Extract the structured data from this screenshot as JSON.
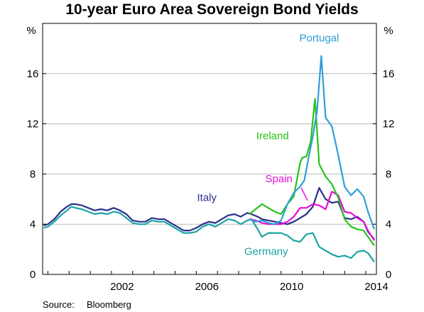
{
  "chart_data": {
    "type": "line",
    "title": "10-year Euro Area Sovereign Bond Yields",
    "ylabel_left": "%",
    "ylabel_right": "%",
    "xlim": [
      1998.75,
      2014.5
    ],
    "ylim": [
      0,
      20
    ],
    "yticks": [
      0,
      4,
      8,
      12,
      16
    ],
    "xticks": [
      "2002",
      "2006",
      "2010",
      "2014"
    ],
    "grid": "horizontal",
    "series": [
      {
        "name": "Germany",
        "color": "#1aa3a3",
        "label_pos": [
          2009.3,
          1.55
        ],
        "x": [
          1998.8,
          1999.0,
          1999.3,
          1999.6,
          1999.9,
          2000.1,
          2000.3,
          2000.6,
          2000.9,
          2001.2,
          2001.5,
          2001.8,
          2002.1,
          2002.4,
          2002.7,
          2003.0,
          2003.3,
          2003.6,
          2003.9,
          2004.2,
          2004.5,
          2004.8,
          2005.1,
          2005.4,
          2005.7,
          2006.0,
          2006.3,
          2006.6,
          2006.9,
          2007.2,
          2007.5,
          2007.8,
          2008.1,
          2008.4,
          2008.6,
          2008.9,
          2009.1,
          2009.4,
          2009.7,
          2010.0,
          2010.3,
          2010.6,
          2010.9,
          2011.2,
          2011.5,
          2011.8,
          2012.1,
          2012.4,
          2012.7,
          2013.0,
          2013.3,
          2013.6,
          2013.9,
          2014.1,
          2014.4
        ],
        "y": [
          3.7,
          3.8,
          4.2,
          4.7,
          5.1,
          5.4,
          5.3,
          5.2,
          5.0,
          4.8,
          4.9,
          4.8,
          5.0,
          4.9,
          4.5,
          4.1,
          4.0,
          4.0,
          4.3,
          4.2,
          4.2,
          3.9,
          3.6,
          3.3,
          3.3,
          3.4,
          3.8,
          4.0,
          3.8,
          4.1,
          4.4,
          4.3,
          4.0,
          4.3,
          4.4,
          3.6,
          3.0,
          3.3,
          3.3,
          3.3,
          3.1,
          2.7,
          2.6,
          3.2,
          3.3,
          2.2,
          1.9,
          1.6,
          1.4,
          1.5,
          1.3,
          1.8,
          1.9,
          1.7,
          1.0
        ]
      },
      {
        "name": "Italy",
        "color": "#2b2f8c",
        "label_pos": [
          2006.5,
          5.85
        ],
        "x": [
          1998.8,
          1999.0,
          1999.3,
          1999.6,
          1999.9,
          2000.1,
          2000.3,
          2000.6,
          2000.9,
          2001.2,
          2001.5,
          2001.8,
          2002.1,
          2002.4,
          2002.7,
          2003.0,
          2003.3,
          2003.6,
          2003.9,
          2004.2,
          2004.5,
          2004.8,
          2005.1,
          2005.4,
          2005.7,
          2006.0,
          2006.3,
          2006.6,
          2006.9,
          2007.2,
          2007.5,
          2007.8,
          2008.1,
          2008.4,
          2008.6,
          2008.9,
          2009.1,
          2009.4,
          2009.7,
          2010.0,
          2010.3,
          2010.6,
          2010.9,
          2011.2,
          2011.5,
          2011.8,
          2012.1,
          2012.4,
          2012.7,
          2013.0,
          2013.3,
          2013.6,
          2013.9,
          2014.1,
          2014.4
        ],
        "y": [
          3.9,
          4.0,
          4.4,
          5.0,
          5.4,
          5.6,
          5.6,
          5.5,
          5.3,
          5.1,
          5.2,
          5.1,
          5.3,
          5.1,
          4.8,
          4.3,
          4.2,
          4.2,
          4.5,
          4.4,
          4.4,
          4.1,
          3.8,
          3.5,
          3.5,
          3.7,
          4.0,
          4.2,
          4.1,
          4.4,
          4.7,
          4.8,
          4.6,
          4.9,
          4.8,
          4.6,
          4.4,
          4.3,
          4.2,
          4.1,
          4.0,
          4.2,
          4.5,
          4.8,
          5.4,
          6.9,
          6.0,
          5.7,
          5.8,
          4.5,
          4.4,
          4.6,
          4.2,
          3.4,
          2.8
        ]
      },
      {
        "name": "Spain",
        "color": "#e60fd7",
        "label_pos": [
          2009.9,
          7.35
        ],
        "x": [
          2008.5,
          2008.8,
          2009.1,
          2009.4,
          2009.7,
          2010.0,
          2010.3,
          2010.6,
          2010.9,
          2011.2,
          2011.5,
          2011.8,
          2012.1,
          2012.4,
          2012.7,
          2013.0,
          2013.3,
          2013.6,
          2013.9,
          2014.1,
          2014.4
        ],
        "y": [
          4.4,
          4.3,
          4.1,
          4.0,
          4.0,
          4.0,
          4.2,
          4.6,
          5.3,
          5.3,
          5.6,
          5.5,
          5.2,
          6.6,
          6.3,
          5.0,
          4.9,
          4.5,
          4.2,
          3.5,
          2.7
        ]
      },
      {
        "name": "Ireland",
        "color": "#27c41b",
        "label_pos": [
          2009.6,
          10.75
        ],
        "x": [
          2008.5,
          2008.8,
          2009.1,
          2009.4,
          2009.7,
          2010.0,
          2010.3,
          2010.6,
          2010.9,
          2011.0,
          2011.2,
          2011.4,
          2011.6,
          2011.8,
          2012.1,
          2012.4,
          2012.7,
          2013.0,
          2013.3,
          2013.6,
          2013.9,
          2014.1,
          2014.4
        ],
        "y": [
          4.8,
          5.2,
          5.6,
          5.3,
          5.0,
          4.8,
          5.6,
          6.2,
          8.9,
          9.3,
          9.4,
          10.6,
          14.0,
          8.8,
          7.8,
          7.2,
          6.1,
          4.4,
          3.8,
          3.6,
          3.5,
          3.0,
          2.3
        ]
      },
      {
        "name": "Portugal",
        "color": "#2f9ed8",
        "label_pos": [
          2011.8,
          18.55
        ],
        "x": [
          2008.5,
          2008.8,
          2009.1,
          2009.4,
          2009.7,
          2010.0,
          2010.3,
          2010.6,
          2010.9,
          2011.1,
          2011.3,
          2011.5,
          2011.7,
          2011.9,
          2012.1,
          2012.4,
          2012.7,
          2013.0,
          2013.3,
          2013.6,
          2013.9,
          2014.1,
          2014.4
        ],
        "y": [
          4.4,
          4.2,
          4.3,
          4.1,
          4.0,
          4.3,
          5.6,
          6.5,
          7.0,
          7.5,
          9.3,
          11.0,
          13.0,
          17.4,
          12.5,
          11.8,
          9.5,
          7.0,
          6.3,
          6.8,
          6.2,
          5.0,
          3.6
        ]
      }
    ]
  },
  "source": {
    "label": "Source:",
    "value": "Bloomberg"
  }
}
